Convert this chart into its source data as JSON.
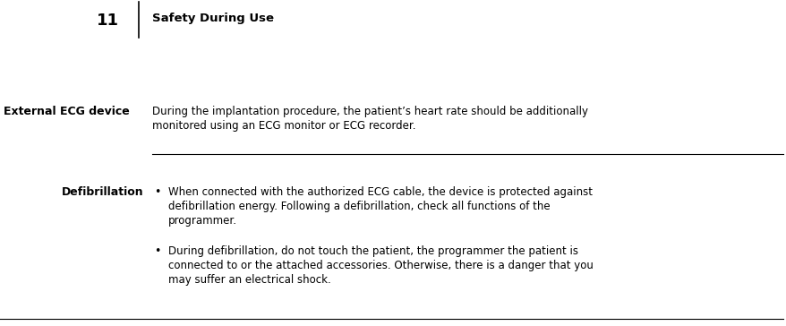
{
  "background_color": "#ffffff",
  "page_number": "11",
  "chapter_title": "Safety During Use",
  "section1_label": "External ECG device",
  "section1_line1": "During the implantation procedure, the patient’s heart rate should be additionally",
  "section1_line2": "monitored using an ECG monitor or ECG recorder.",
  "section2_label": "Defibrillation",
  "bullet1_line1": "When connected with the authorized ECG cable, the device is protected against",
  "bullet1_line2": "defibrillation energy. Following a defibrillation, check all functions of the",
  "bullet1_line3": "programmer.",
  "bullet2_line1": "During defibrillation, do not touch the patient, the programmer the patient is",
  "bullet2_line2": "connected to or the attached accessories. Otherwise, there is a danger that you",
  "bullet2_line3": "may suffer an electrical shock.",
  "text_color": "#000000",
  "separator_color": "#000000",
  "fig_width": 8.79,
  "fig_height": 3.64,
  "dpi": 100
}
